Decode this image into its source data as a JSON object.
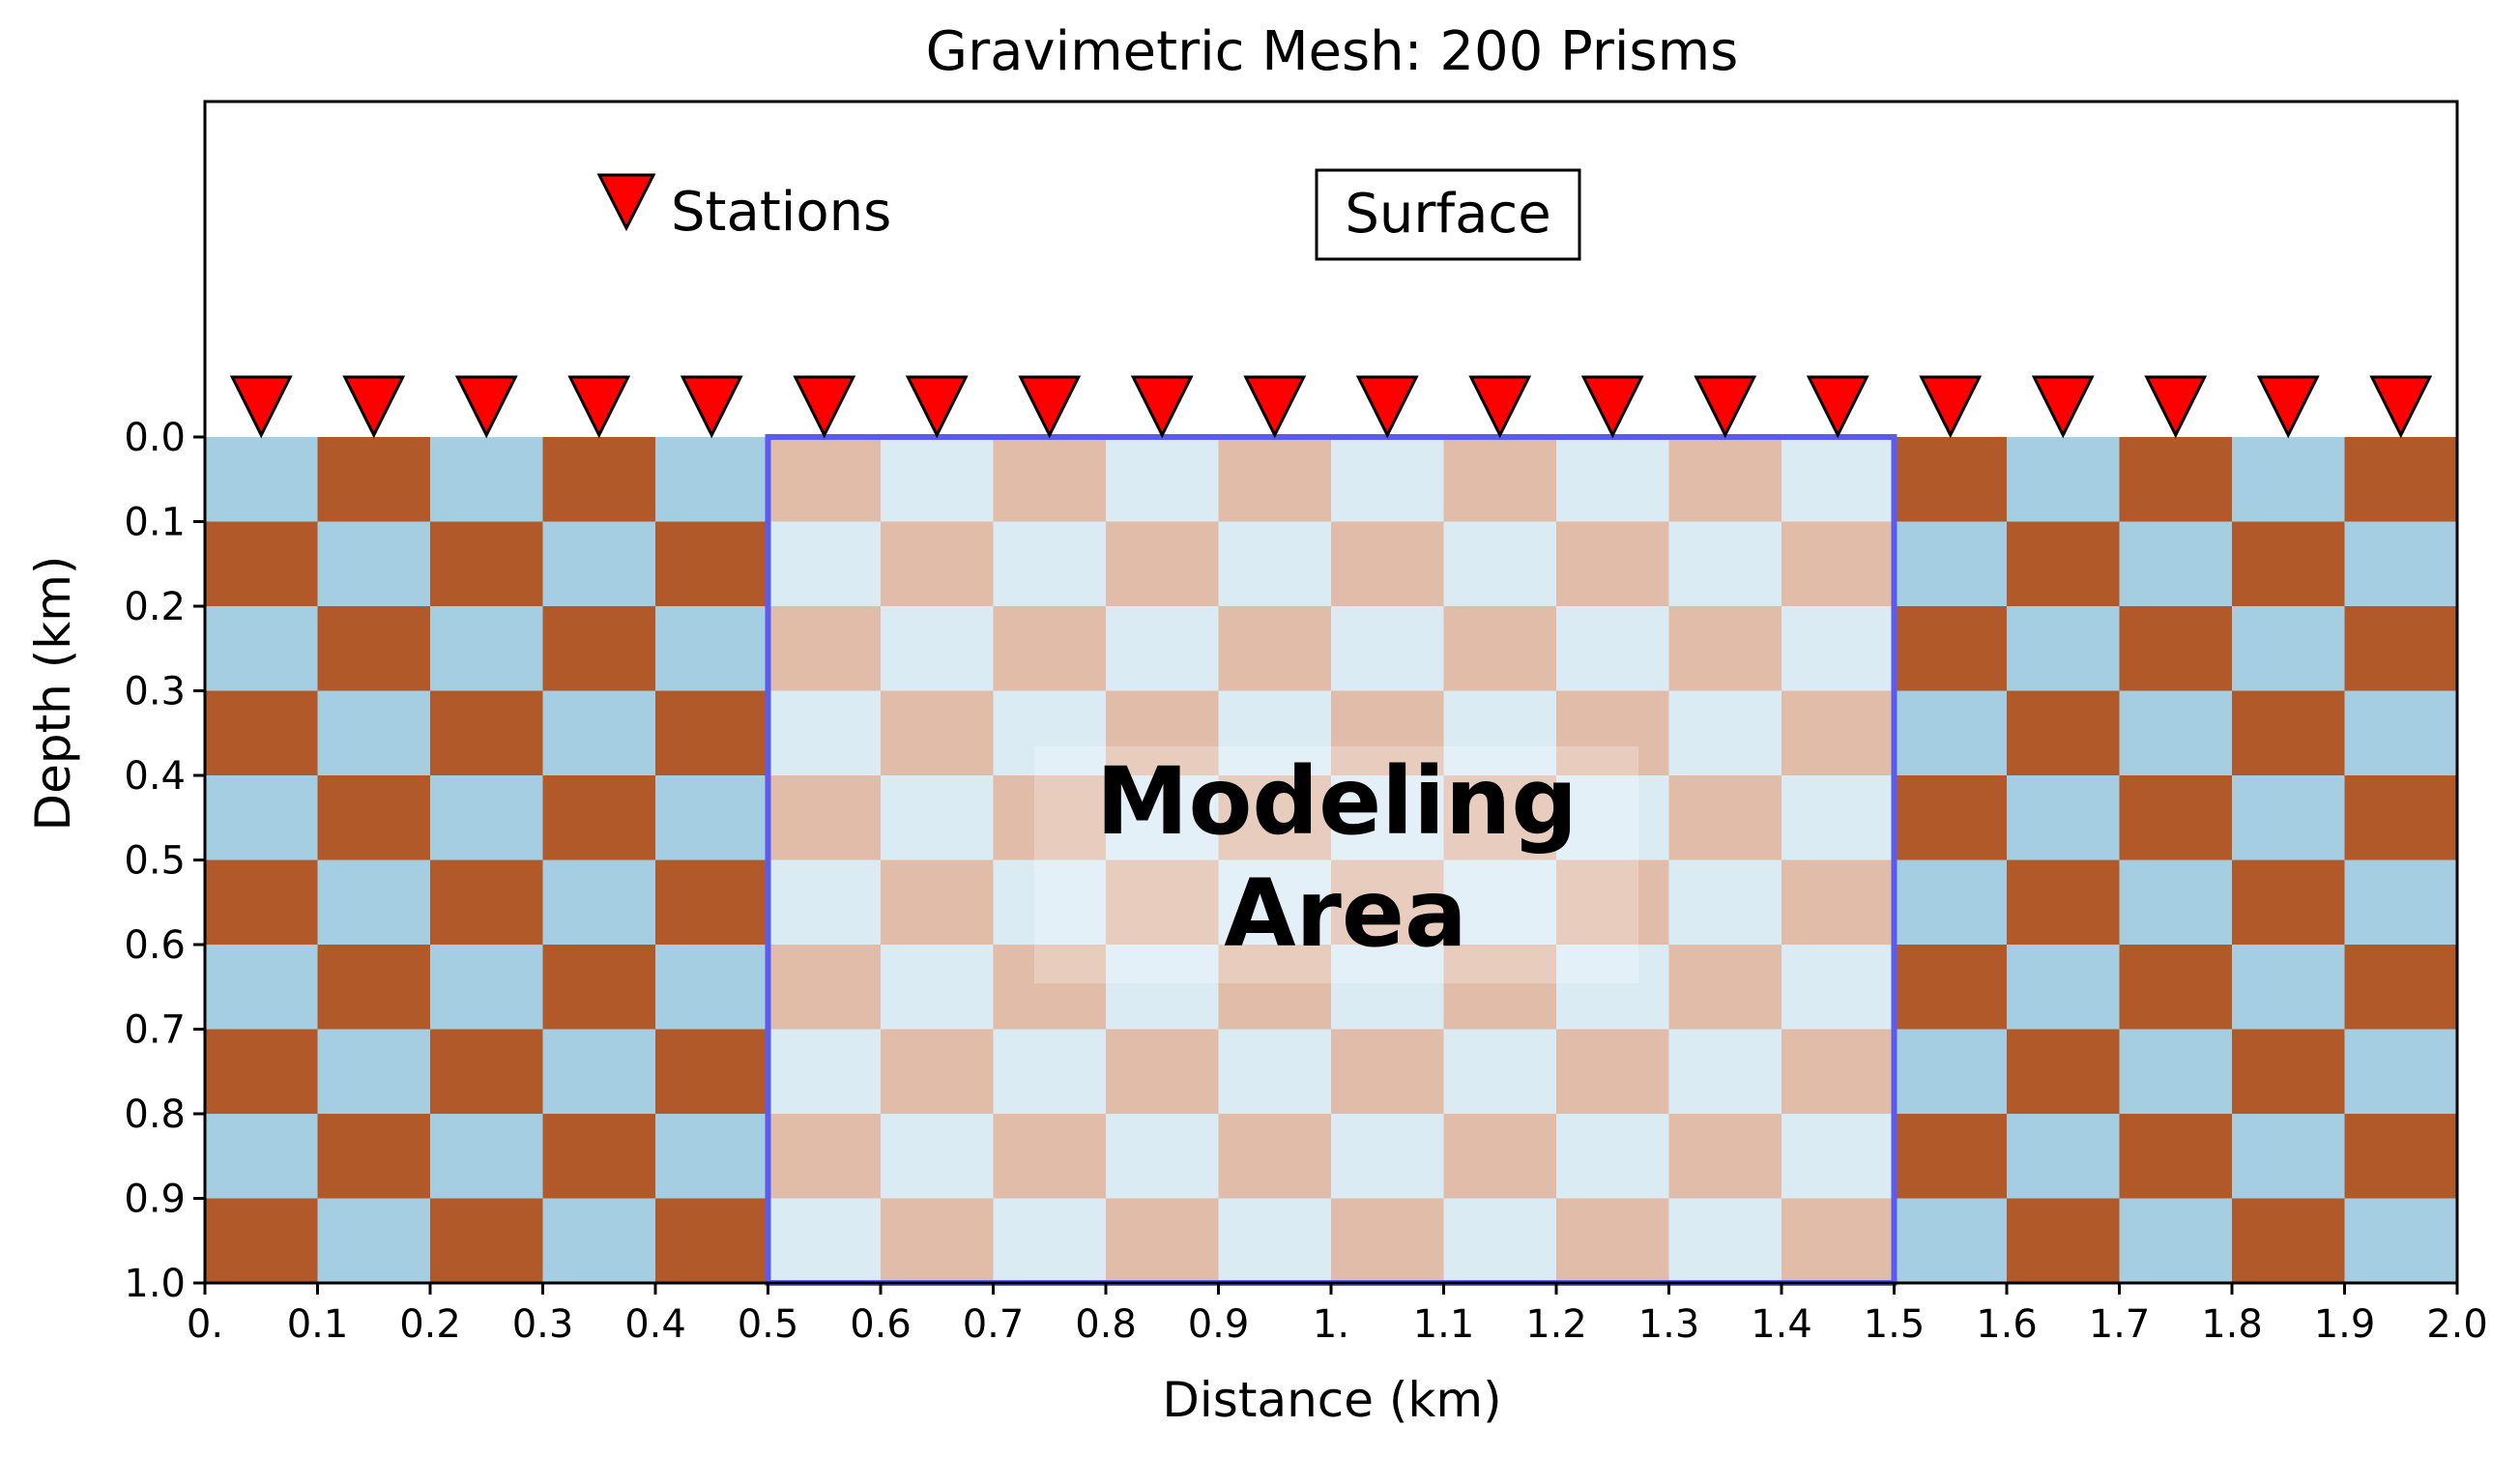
{
  "chart_data": {
    "type": "heatmap",
    "title": "Gravimetric Mesh: 200 Prisms",
    "xlabel": "Distance (km)",
    "ylabel": "Depth (km)",
    "xlim": [
      0,
      2.0
    ],
    "ylim": [
      1.0,
      0.0
    ],
    "y_inverted": true,
    "grid": false,
    "x_ticks": [
      0,
      0.1,
      0.2,
      0.3,
      0.4,
      0.5,
      0.6,
      0.7,
      0.8,
      0.9,
      1.0,
      1.1,
      1.2,
      1.3,
      1.4,
      1.5,
      1.6,
      1.7,
      1.8,
      1.9,
      2.0
    ],
    "x_tick_labels": [
      "0.",
      "0.1",
      "0.2",
      "0.3",
      "0.4",
      "0.5",
      "0.6",
      "0.7",
      "0.8",
      "0.9",
      "1.",
      "1.1",
      "1.2",
      "1.3",
      "1.4",
      "1.5",
      "1.6",
      "1.7",
      "1.8",
      "1.9",
      "2.0"
    ],
    "y_ticks": [
      0.0,
      0.1,
      0.2,
      0.3,
      0.4,
      0.5,
      0.6,
      0.7,
      0.8,
      0.9,
      1.0
    ],
    "y_tick_labels": [
      "0.0",
      "0.1",
      "0.2",
      "0.3",
      "0.4",
      "0.5",
      "0.6",
      "0.7",
      "0.8",
      "0.9",
      "1.0"
    ],
    "mesh": {
      "x_start": 0.0,
      "x_end": 2.0,
      "z_start": 0.0,
      "z_end": 1.0,
      "nx": 20,
      "nz": 10,
      "pattern": "checkerboard",
      "colors": {
        "even": "#a6cee3",
        "odd": "#b15928"
      }
    },
    "modeling_area": {
      "x_range": [
        0.5,
        1.5
      ],
      "z_range": [
        0.0,
        1.0
      ],
      "label_line1": "Modeling",
      "label_line2": "Area",
      "edge_color": "#5b5bf0",
      "overlay_color": "#ffffff",
      "overlay_opacity": 0.6
    },
    "stations": {
      "x": [
        0.05,
        0.15,
        0.25,
        0.35,
        0.45,
        0.55,
        0.65,
        0.75,
        0.85,
        0.95,
        1.05,
        1.15,
        1.25,
        1.35,
        1.45,
        1.55,
        1.65,
        1.75,
        1.85,
        1.95
      ],
      "color": "#ff0000",
      "edge_color": "#000000",
      "marker": "inverted-triangle"
    },
    "annotations": {
      "stations_legend": "Stations",
      "surface_label": "Surface"
    }
  }
}
